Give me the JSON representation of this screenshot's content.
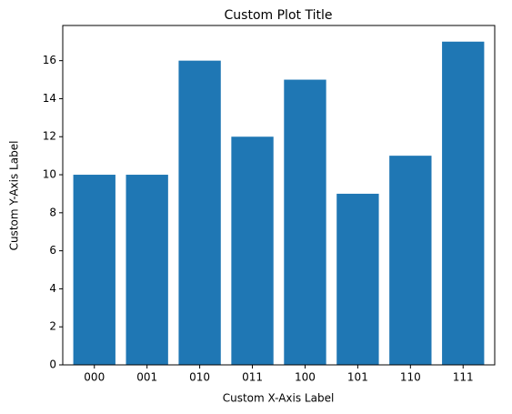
{
  "chart_data": {
    "type": "bar",
    "title": "Custom Plot Title",
    "x_label": "Custom X-Axis Label",
    "y_label": "Custom Y-Axis Label",
    "categories": [
      "000",
      "001",
      "010",
      "011",
      "100",
      "101",
      "110",
      "111"
    ],
    "values": [
      10,
      10,
      16,
      12,
      15,
      9,
      11,
      17
    ],
    "color": "#1f77b4",
    "ylim": [
      0,
      17.85
    ],
    "yticks": [
      0,
      2,
      4,
      6,
      8,
      10,
      12,
      14,
      16
    ]
  }
}
